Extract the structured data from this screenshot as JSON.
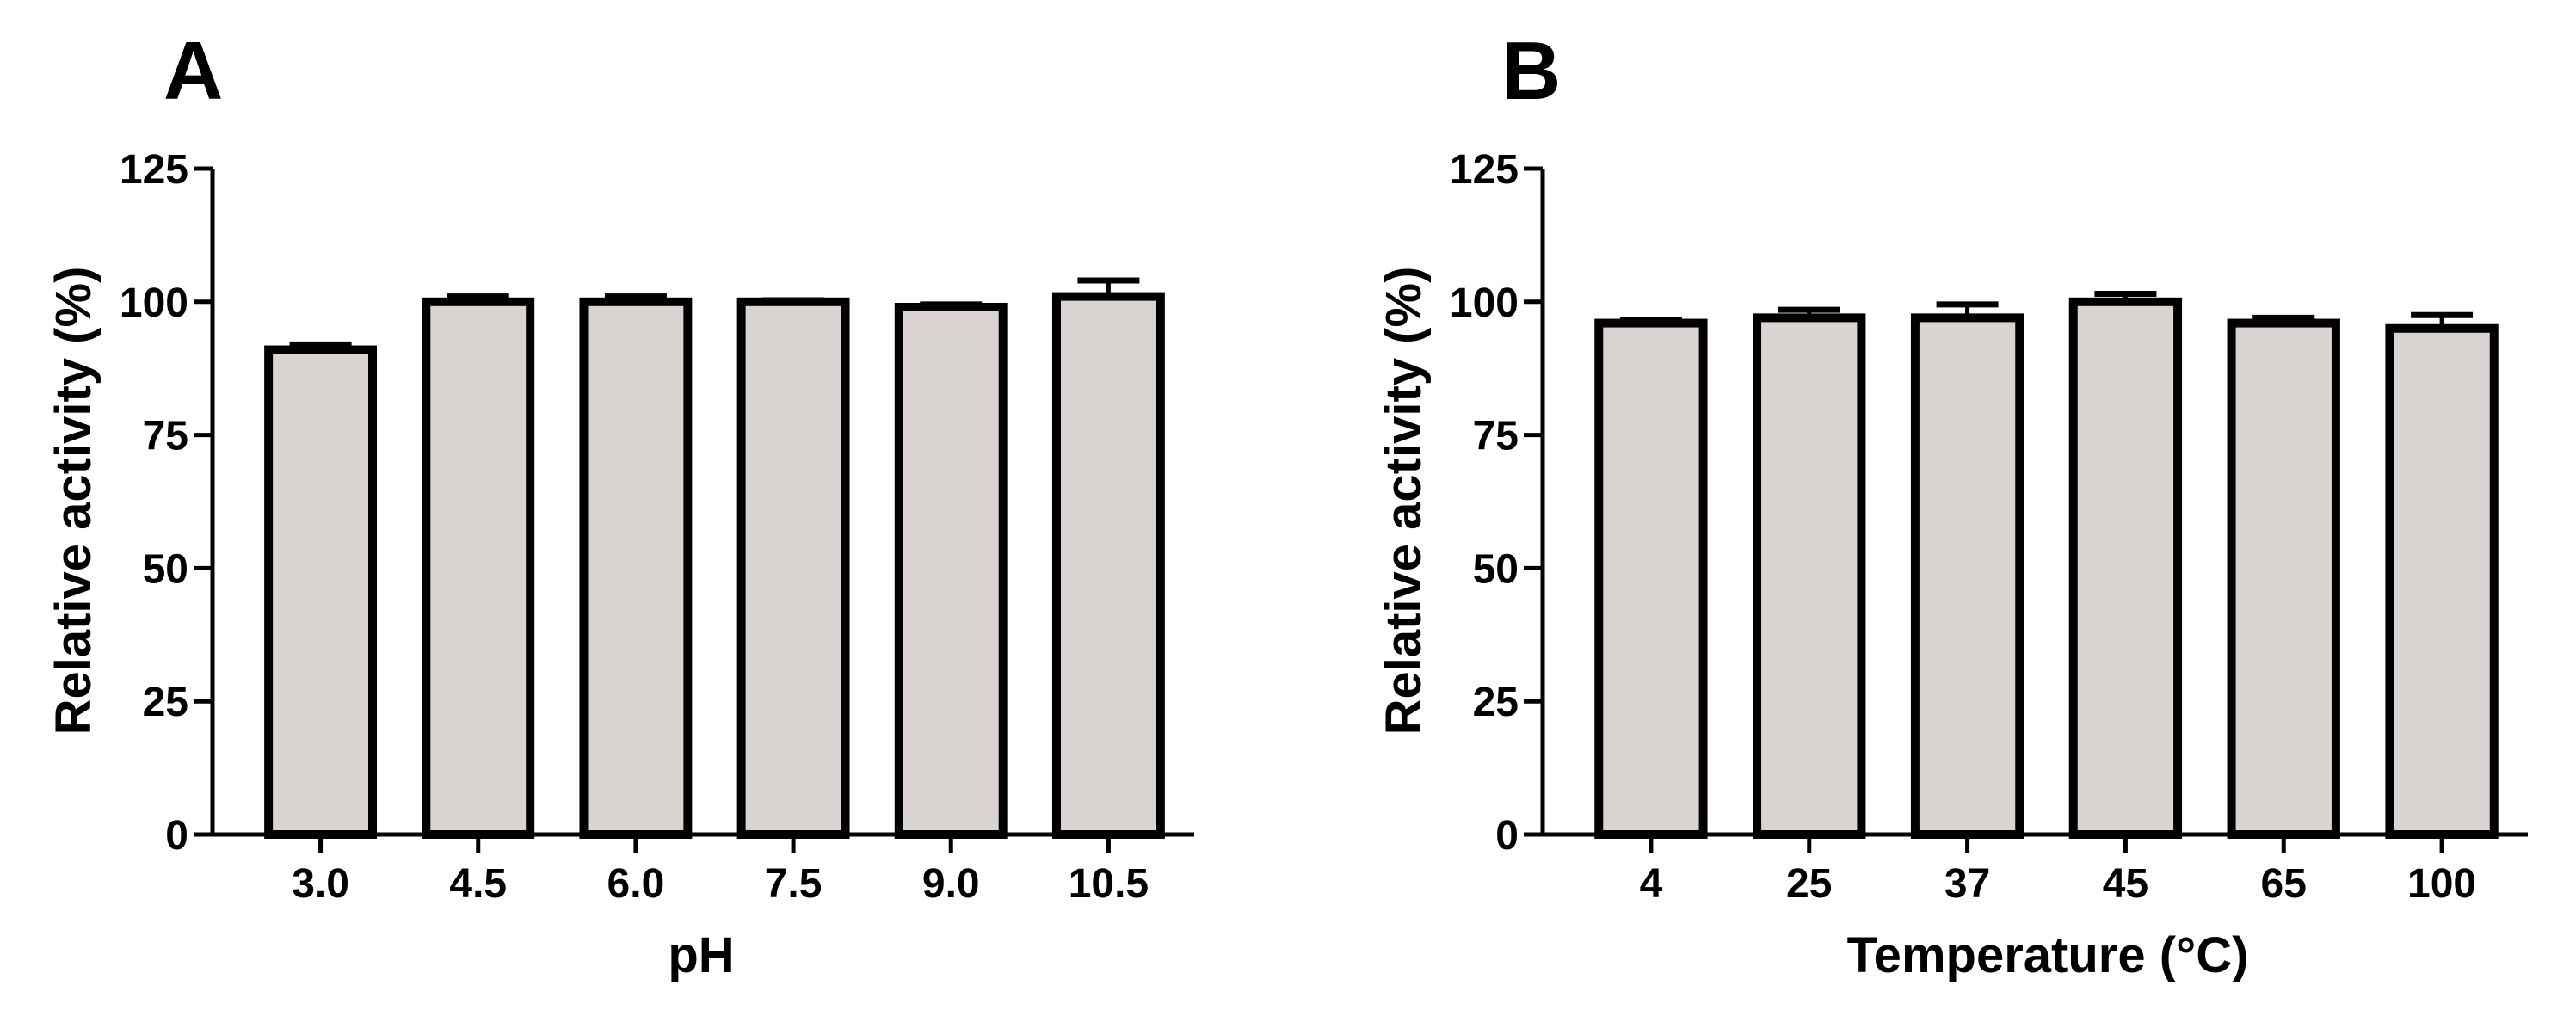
{
  "figure": {
    "background_color": "#ffffff",
    "bar_fill_color": "#d9d4d2",
    "bar_stroke_color": "#000000"
  },
  "chart_data": [
    {
      "type": "bar",
      "panel_label": "A",
      "title": "",
      "xlabel": "pH",
      "ylabel": "Relative activity (%)",
      "categories": [
        "3.0",
        "4.5",
        "6.0",
        "7.5",
        "9.0",
        "10.5"
      ],
      "values": [
        91,
        100,
        100,
        100,
        99,
        101
      ],
      "error": [
        1,
        1,
        1,
        0.3,
        0.5,
        3
      ],
      "ylim": [
        0,
        125
      ],
      "yticks": [
        0,
        25,
        50,
        75,
        100,
        125
      ],
      "ytick_labels": [
        "0",
        "25",
        "50",
        "75",
        "100",
        "125"
      ],
      "grid": false,
      "legend": "none"
    },
    {
      "type": "bar",
      "panel_label": "B",
      "title": "",
      "xlabel": "Temperature (°C)",
      "ylabel": "Relative activity (%)",
      "categories": [
        "4",
        "25",
        "37",
        "45",
        "65",
        "100"
      ],
      "values": [
        96,
        97,
        97,
        100,
        96,
        95
      ],
      "error": [
        0.5,
        1.5,
        2.5,
        1.5,
        1,
        2.5
      ],
      "ylim": [
        0,
        125
      ],
      "yticks": [
        0,
        25,
        50,
        75,
        100,
        125
      ],
      "ytick_labels": [
        "0",
        "25",
        "50",
        "75",
        "100",
        "125"
      ],
      "grid": false,
      "legend": "none"
    }
  ]
}
